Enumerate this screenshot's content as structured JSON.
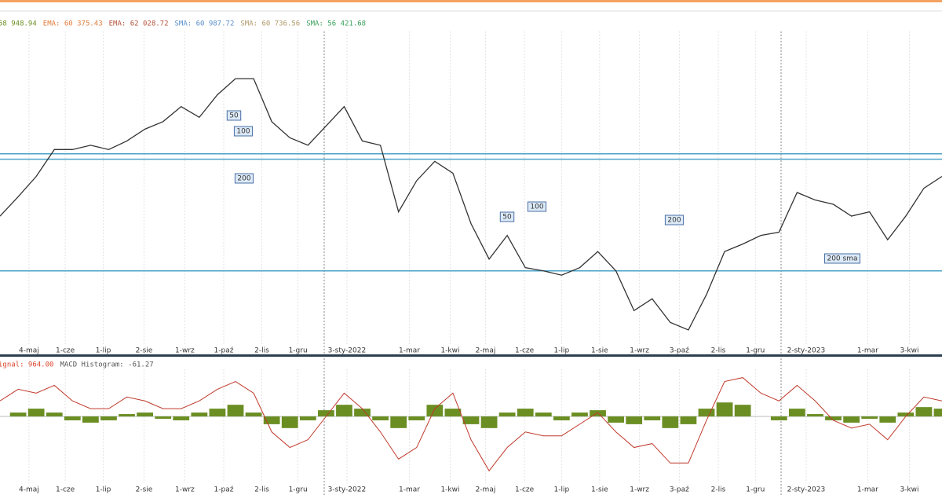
{
  "chart_data": [
    {
      "type": "line",
      "legend": [
        {
          "text": "58 948.94",
          "color": "#6b8e23"
        },
        {
          "text": "EMA: 60 375.43",
          "color": "#e07b39"
        },
        {
          "text": "EMA: 62 028.72",
          "color": "#b5533c"
        },
        {
          "text": "SMA: 60 987.72",
          "color": "#5b8fc9"
        },
        {
          "text": "SMA: 60 736.56",
          "color": "#b09a6a"
        },
        {
          "text": "SMA: 56 421.68",
          "color": "#3aa05a"
        }
      ],
      "x": [
        0,
        2,
        4,
        6,
        8,
        10,
        12,
        14,
        16,
        18,
        20,
        22,
        24,
        26,
        28,
        30,
        32,
        34,
        36,
        38,
        40,
        42,
        44,
        46,
        48,
        50,
        52,
        54,
        56,
        58,
        60,
        62,
        64,
        66,
        68,
        70,
        72,
        74,
        76,
        78,
        80,
        82,
        84,
        86,
        88,
        90,
        92,
        94,
        96,
        98,
        100,
        102,
        104
      ],
      "series": [
        {
          "color": "#333333",
          "values": [
            58800,
            60600,
            62500,
            65000,
            65000,
            65400,
            65000,
            65800,
            66900,
            67600,
            69000,
            68000,
            70100,
            71600,
            71600,
            67600,
            66100,
            65400,
            67200,
            69000,
            65800,
            65400,
            59200,
            62100,
            63900,
            62800,
            58100,
            54800,
            57000,
            54000,
            53700,
            53300,
            54000,
            55500,
            53700,
            50000,
            51100,
            48900,
            48200,
            51500,
            55500,
            56200,
            57000,
            57300,
            61000,
            60300,
            59900,
            58800,
            59200,
            56600,
            58800,
            61400,
            62500
          ]
        }
      ],
      "levels": [
        64600,
        64100,
        53700
      ],
      "level_color": "#4aa3c8",
      "annotations": [
        "50",
        "100",
        "200",
        "50",
        "100",
        "200",
        "200 sma"
      ],
      "xlim": [
        0,
        104
      ],
      "ylim": [
        46000,
        76000
      ],
      "xticks": [
        {
          "value": 3.2,
          "label": "4-maj"
        },
        {
          "value": 7.2,
          "label": "1-cze"
        },
        {
          "value": 11.4,
          "label": "1-lip"
        },
        {
          "value": 15.9,
          "label": "2-sie"
        },
        {
          "value": 20.4,
          "label": "1-wrz"
        },
        {
          "value": 24.7,
          "label": "1-paź"
        },
        {
          "value": 28.9,
          "label": "2-lis"
        },
        {
          "value": 32.9,
          "label": "1-gru"
        },
        {
          "value": 38.3,
          "label": "3-sty-2022"
        },
        {
          "value": 45.2,
          "label": "1-mar"
        },
        {
          "value": 49.7,
          "label": "1-kwi"
        },
        {
          "value": 53.6,
          "label": "2-maj"
        },
        {
          "value": 57.9,
          "label": "1-cze"
        },
        {
          "value": 62,
          "label": "1-lip"
        },
        {
          "value": 66.2,
          "label": "1-sie"
        },
        {
          "value": 70.6,
          "label": "1-wrz"
        },
        {
          "value": 75,
          "label": "3-paź"
        },
        {
          "value": 79.3,
          "label": "2-lis"
        },
        {
          "value": 83.4,
          "label": "1-gru"
        },
        {
          "value": 89,
          "label": "2-sty-2023"
        },
        {
          "value": 95.8,
          "label": "1-mar"
        },
        {
          "value": 100.4,
          "label": "3-kwi"
        }
      ],
      "grid": true
    },
    {
      "type": "macd",
      "legend": [
        {
          "text": "ignal: 964.00",
          "color": "#d9452b"
        },
        {
          "text": "MACD Histogram: -61.27",
          "color": "#555555"
        }
      ],
      "x": [
        0,
        2,
        4,
        6,
        8,
        10,
        12,
        14,
        16,
        18,
        20,
        22,
        24,
        26,
        28,
        30,
        32,
        34,
        36,
        38,
        40,
        42,
        44,
        46,
        48,
        50,
        52,
        54,
        56,
        58,
        60,
        62,
        64,
        66,
        68,
        70,
        72,
        74,
        76,
        78,
        80,
        82,
        84,
        86,
        88,
        90,
        92,
        94,
        96,
        98,
        100,
        102,
        104
      ],
      "histogram": {
        "color": "#6b8e23",
        "values": [
          0,
          100,
          200,
          100,
          -100,
          -160,
          -100,
          60,
          100,
          -60,
          -100,
          100,
          200,
          300,
          100,
          -200,
          -300,
          -100,
          160,
          300,
          200,
          -100,
          -300,
          -100,
          300,
          200,
          -200,
          -300,
          100,
          200,
          100,
          -100,
          100,
          160,
          -160,
          -200,
          -100,
          -300,
          -200,
          200,
          360,
          300,
          0,
          -100,
          200,
          60,
          -100,
          -160,
          -60,
          -160,
          100,
          240,
          200
        ]
      },
      "macd": {
        "color": "#c0392b",
        "values": [
          400,
          700,
          600,
          800,
          400,
          200,
          200,
          500,
          400,
          200,
          200,
          400,
          700,
          900,
          600,
          -400,
          -800,
          -600,
          0,
          600,
          200,
          -400,
          -1100,
          -800,
          200,
          600,
          -600,
          -1400,
          -800,
          -400,
          -500,
          -500,
          -200,
          100,
          -400,
          -800,
          -700,
          -1200,
          -1200,
          -100,
          900,
          1000,
          600,
          400,
          800,
          400,
          -100,
          -300,
          -200,
          -600,
          0,
          500,
          400
        ]
      },
      "xlim": [
        0,
        104
      ],
      "ylim": [
        -1700,
        1700
      ]
    }
  ]
}
